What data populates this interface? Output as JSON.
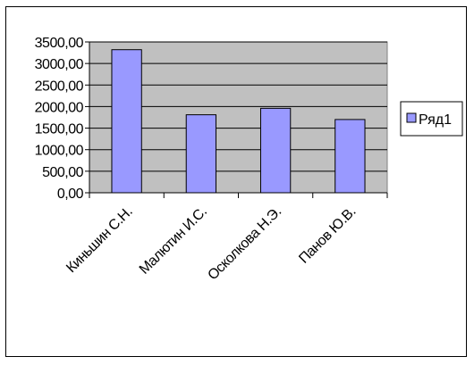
{
  "chart_data": {
    "type": "bar",
    "categories": [
      "Киньшин С.Н.",
      "Малютин И.С.",
      "Осколкова Н.Э.",
      "Панов Ю.В."
    ],
    "series": [
      {
        "name": "Ряд1",
        "values": [
          3320,
          1810,
          1960,
          1700
        ]
      }
    ],
    "y_ticks": [
      "0,00",
      "500,00",
      "1000,00",
      "1500,00",
      "2000,00",
      "2500,00",
      "3000,00",
      "3500,00"
    ],
    "ylim": [
      0,
      3500
    ],
    "ytick_step": 500,
    "grid": true,
    "legend": "right",
    "colors": {
      "plot_background": "#c0c0c0",
      "bar_fill": "#9999ff",
      "bar_stroke": "#000000",
      "gridline": "#000000"
    }
  }
}
